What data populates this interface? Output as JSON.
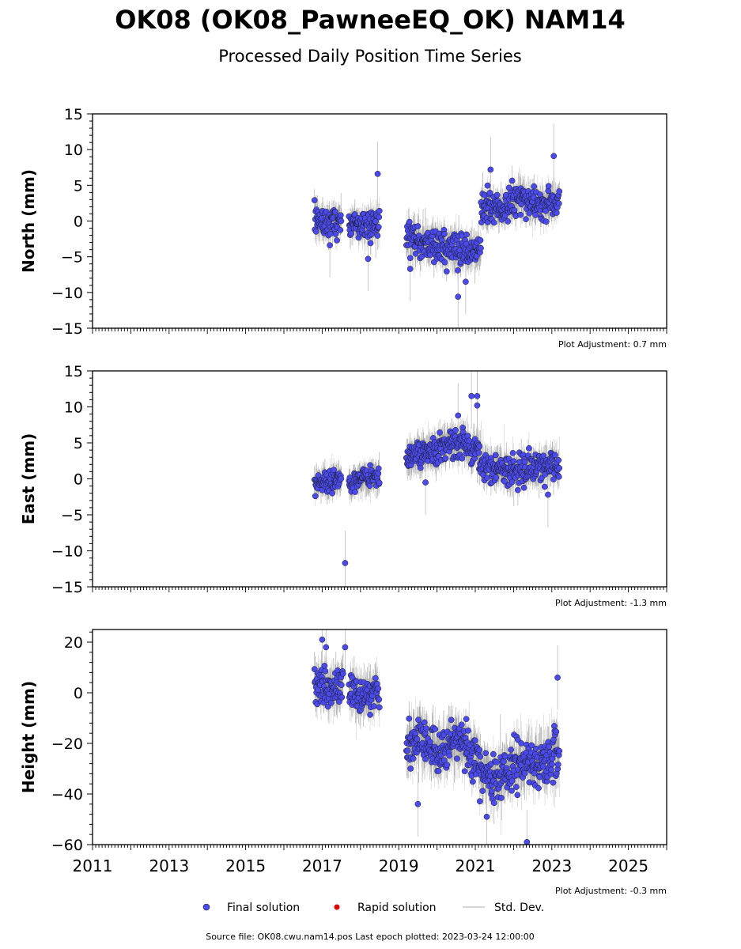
{
  "header": {
    "title": "OK08 (OK08_PawneeEQ_OK) NAM14",
    "subtitle": "Processed Daily Position Time Series"
  },
  "legend": {
    "items": [
      {
        "label": "Final solution",
        "color": "#4a4aee",
        "kind": "marker"
      },
      {
        "label": "Rapid solution",
        "color": "#dd0000",
        "kind": "marker"
      },
      {
        "label": "Std. Dev.",
        "color": "#c8c8c8",
        "kind": "line"
      }
    ]
  },
  "footer": {
    "source": "Source file: OK08.cwu.nam14.pos  Last epoch plotted: 2023-03-24 12:00:00"
  },
  "colors": {
    "final": "#4a4aee",
    "stddev": "#9a9a9a"
  },
  "chart_data": [
    {
      "type": "scatter",
      "ylabel": "North (mm)",
      "ylim": [
        -15,
        15
      ],
      "yticks": [
        -15,
        -10,
        -5,
        0,
        5,
        10,
        15
      ],
      "xlim": [
        2011,
        2026
      ],
      "xticks": [
        2011,
        2013,
        2015,
        2017,
        2019,
        2021,
        2023,
        2025
      ],
      "adjustment": "Plot Adjustment: 0.7 mm",
      "series": [
        {
          "segments": [
            {
              "start": 2016.8,
              "end": 2017.5,
              "level": [
                [
                  2016.8,
                  0.0
                ],
                [
                  2017.5,
                  0.0
                ]
              ],
              "spread": 1.4,
              "err": 1.6
            },
            {
              "start": 2017.7,
              "end": 2018.5,
              "level": [
                [
                  2017.7,
                  -0.5
                ],
                [
                  2018.5,
                  -0.5
                ]
              ],
              "spread": 1.4,
              "err": 1.6
            },
            {
              "start": 2019.2,
              "end": 2021.15,
              "level": [
                [
                  2019.2,
                  -2.0
                ],
                [
                  2019.7,
                  -3.0
                ],
                [
                  2020.2,
                  -3.5
                ],
                [
                  2020.7,
                  -4.5
                ],
                [
                  2021.15,
                  -4.0
                ]
              ],
              "spread": 1.6,
              "err": 1.8
            },
            {
              "start": 2021.15,
              "end": 2023.2,
              "level": [
                [
                  2021.15,
                  2.0
                ],
                [
                  2021.6,
                  1.5
                ],
                [
                  2022.1,
                  3.0
                ],
                [
                  2022.6,
                  2.5
                ],
                [
                  2023.2,
                  2.5
                ]
              ],
              "spread": 1.4,
              "err": 1.7
            }
          ],
          "outliers": [
            [
              2018.45,
              6.6
            ],
            [
              2023.05,
              9.1
            ],
            [
              2021.4,
              7.2
            ],
            [
              2020.55,
              -10.6
            ],
            [
              2017.2,
              -3.4
            ],
            [
              2018.2,
              -5.3
            ],
            [
              2019.3,
              -6.7
            ],
            [
              2020.75,
              -8.5
            ]
          ]
        }
      ]
    },
    {
      "type": "scatter",
      "ylabel": "East (mm)",
      "ylim": [
        -15,
        15
      ],
      "yticks": [
        -15,
        -10,
        -5,
        0,
        5,
        10,
        15
      ],
      "xlim": [
        2011,
        2026
      ],
      "xticks": [
        2011,
        2013,
        2015,
        2017,
        2019,
        2021,
        2023,
        2025
      ],
      "adjustment": "Plot Adjustment: -1.3 mm",
      "series": [
        {
          "segments": [
            {
              "start": 2016.8,
              "end": 2017.5,
              "level": [
                [
                  2016.8,
                  -0.5
                ],
                [
                  2017.5,
                  0.0
                ]
              ],
              "spread": 1.0,
              "err": 1.5
            },
            {
              "start": 2017.7,
              "end": 2018.5,
              "level": [
                [
                  2017.7,
                  -0.5
                ],
                [
                  2018.5,
                  0.5
                ]
              ],
              "spread": 1.1,
              "err": 1.5
            },
            {
              "start": 2019.2,
              "end": 2021.1,
              "level": [
                [
                  2019.2,
                  3.0
                ],
                [
                  2019.7,
                  3.8
                ],
                [
                  2020.2,
                  4.5
                ],
                [
                  2020.6,
                  5.0
                ],
                [
                  2021.1,
                  4.0
                ]
              ],
              "spread": 1.3,
              "err": 1.8
            },
            {
              "start": 2021.1,
              "end": 2023.2,
              "level": [
                [
                  2021.1,
                  2.0
                ],
                [
                  2021.6,
                  1.5
                ],
                [
                  2022.1,
                  0.8
                ],
                [
                  2022.6,
                  1.5
                ],
                [
                  2023.2,
                  2.0
                ]
              ],
              "spread": 1.4,
              "err": 1.8
            }
          ],
          "outliers": [
            [
              2017.6,
              -11.7
            ],
            [
              2020.9,
              11.5
            ],
            [
              2021.05,
              11.5
            ],
            [
              2021.05,
              10.2
            ],
            [
              2020.55,
              8.8
            ],
            [
              2022.9,
              -2.2
            ],
            [
              2019.7,
              -0.5
            ]
          ]
        }
      ]
    },
    {
      "type": "scatter",
      "ylabel": "Height (mm)",
      "ylim": [
        -60,
        25
      ],
      "yticks": [
        -60,
        -40,
        -20,
        0,
        20
      ],
      "xlim": [
        2011,
        2026
      ],
      "xticks": [
        2011,
        2013,
        2015,
        2017,
        2019,
        2021,
        2023,
        2025
      ],
      "adjustment": "Plot Adjustment: -0.3 mm",
      "series": [
        {
          "segments": [
            {
              "start": 2016.8,
              "end": 2017.55,
              "level": [
                [
                  2016.8,
                  3.0
                ],
                [
                  2017.55,
                  2.0
                ]
              ],
              "spread": 5.0,
              "err": 6.0
            },
            {
              "start": 2017.7,
              "end": 2018.5,
              "level": [
                [
                  2017.7,
                  2.0
                ],
                [
                  2018.1,
                  -2.0
                ],
                [
                  2018.5,
                  0.0
                ]
              ],
              "spread": 5.0,
              "err": 6.0
            },
            {
              "start": 2019.2,
              "end": 2021.1,
              "level": [
                [
                  2019.2,
                  -22.0
                ],
                [
                  2019.6,
                  -18.0
                ],
                [
                  2020.0,
                  -24.0
                ],
                [
                  2020.5,
                  -18.0
                ],
                [
                  2021.1,
                  -25.0
                ]
              ],
              "spread": 6.0,
              "err": 7.0
            },
            {
              "start": 2021.1,
              "end": 2023.2,
              "level": [
                [
                  2021.1,
                  -30.0
                ],
                [
                  2021.5,
                  -35.0
                ],
                [
                  2022.0,
                  -28.0
                ],
                [
                  2022.5,
                  -28.0
                ],
                [
                  2023.2,
                  -24.0
                ]
              ],
              "spread": 6.5,
              "err": 7.0
            }
          ],
          "outliers": [
            [
              2017.0,
              21.0
            ],
            [
              2017.1,
              18.0
            ],
            [
              2017.6,
              18.0
            ],
            [
              2023.15,
              6.0
            ],
            [
              2022.35,
              -59.0
            ],
            [
              2021.3,
              -49.0
            ],
            [
              2019.5,
              -44.0
            ]
          ]
        }
      ]
    }
  ]
}
